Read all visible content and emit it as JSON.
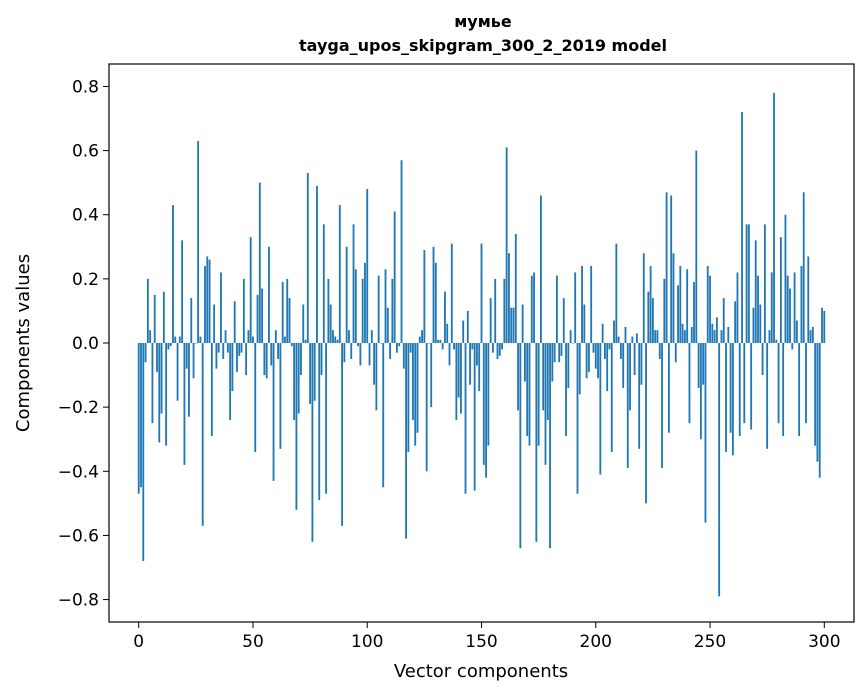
{
  "chart_data": {
    "type": "bar",
    "title_line1": "мумье",
    "title_line2": "tayga_upos_skipgram_300_2_2019 model",
    "xlabel": "Vector components",
    "ylabel": "Components values",
    "xlim": [
      -13,
      313
    ],
    "ylim": [
      -0.87,
      0.87
    ],
    "xticks": [
      0,
      50,
      100,
      150,
      200,
      250,
      300
    ],
    "yticks": [
      -0.8,
      -0.6,
      -0.4,
      -0.2,
      0.0,
      0.2,
      0.4,
      0.6,
      0.8
    ],
    "ytick_labels": [
      "−0.8",
      "−0.6",
      "−0.4",
      "−0.2",
      "0.0",
      "0.2",
      "0.4",
      "0.6",
      "0.8"
    ],
    "bar_color": "#1f77b4",
    "values": [
      -0.47,
      -0.45,
      -0.68,
      -0.06,
      0.2,
      0.04,
      -0.25,
      0.15,
      -0.09,
      -0.31,
      -0.22,
      0.16,
      -0.32,
      -0.02,
      -0.01,
      0.43,
      0.02,
      -0.18,
      0.02,
      0.32,
      -0.38,
      -0.08,
      -0.23,
      0.14,
      -0.11,
      0.0,
      0.63,
      0.02,
      -0.57,
      0.24,
      0.27,
      0.26,
      -0.29,
      0.12,
      -0.08,
      -0.03,
      0.22,
      -0.05,
      0.04,
      -0.03,
      -0.24,
      -0.15,
      0.13,
      -0.09,
      -0.04,
      -0.03,
      0.2,
      -0.1,
      0.04,
      0.33,
      0.02,
      -0.34,
      0.15,
      0.5,
      0.17,
      -0.1,
      -0.11,
      0.3,
      -0.07,
      -0.43,
      0.04,
      -0.05,
      -0.33,
      0.19,
      0.02,
      0.2,
      0.14,
      -0.01,
      -0.24,
      -0.52,
      -0.22,
      -0.1,
      0.12,
      0.01,
      0.53,
      -0.19,
      -0.62,
      -0.18,
      0.49,
      -0.49,
      -0.1,
      0.37,
      -0.47,
      0.2,
      0.12,
      0.04,
      0.02,
      0.01,
      0.43,
      -0.57,
      -0.06,
      0.3,
      0.04,
      -0.05,
      0.37,
      0.23,
      -0.01,
      -0.07,
      0.2,
      0.25,
      0.48,
      -0.07,
      0.04,
      -0.13,
      -0.21,
      0.21,
      0.0,
      -0.45,
      0.23,
      0.11,
      -0.05,
      0.2,
      0.41,
      -0.03,
      -0.01,
      0.57,
      -0.08,
      -0.61,
      -0.34,
      -0.03,
      -0.24,
      -0.32,
      -0.28,
      0.02,
      0.04,
      0.29,
      -0.4,
      0.0,
      -0.2,
      0.3,
      0.25,
      0.01,
      0.01,
      -0.02,
      0.16,
      0.06,
      -0.07,
      0.31,
      -0.02,
      -0.24,
      -0.17,
      -0.22,
      0.07,
      -0.47,
      0.1,
      -0.13,
      -0.02,
      -0.46,
      -0.07,
      -0.15,
      0.31,
      -0.38,
      -0.42,
      -0.32,
      0.14,
      -0.03,
      0.2,
      -0.05,
      -0.04,
      -0.02,
      0.2,
      0.61,
      0.28,
      0.11,
      0.11,
      0.34,
      -0.21,
      -0.64,
      0.12,
      -0.12,
      -0.29,
      -0.32,
      0.21,
      0.22,
      -0.62,
      -0.32,
      0.46,
      -0.21,
      -0.38,
      -0.24,
      -0.64,
      -0.12,
      -0.06,
      0.21,
      -0.06,
      -0.04,
      0.14,
      -0.29,
      -0.14,
      0.04,
      0.0,
      0.22,
      -0.47,
      -0.16,
      0.24,
      0.12,
      -0.11,
      -0.09,
      0.24,
      -0.03,
      -0.08,
      -0.11,
      -0.41,
      0.06,
      -0.05,
      -0.15,
      -0.02,
      -0.34,
      0.07,
      0.31,
      0.02,
      -0.05,
      -0.14,
      0.05,
      -0.39,
      -0.21,
      0.02,
      -0.1,
      0.03,
      -0.33,
      -0.13,
      0.28,
      -0.5,
      0.16,
      0.24,
      0.14,
      0.04,
      0.04,
      -0.05,
      -0.39,
      0.2,
      0.47,
      -0.28,
      0.46,
      0.28,
      -0.06,
      0.18,
      0.24,
      0.06,
      0.04,
      0.23,
      -0.25,
      0.05,
      0.19,
      0.6,
      -0.14,
      -0.3,
      -0.13,
      -0.56,
      0.24,
      0.21,
      0.06,
      0.04,
      0.08,
      -0.79,
      0.04,
      0.14,
      -0.34,
      0.05,
      -0.28,
      -0.35,
      0.13,
      0.22,
      -0.29,
      0.72,
      -0.25,
      0.37,
      0.37,
      -0.27,
      0.11,
      0.32,
      0.21,
      0.12,
      -0.1,
      0.37,
      -0.33,
      0.04,
      0.22,
      0.78,
      0.01,
      -0.25,
      0.33,
      -0.29,
      0.4,
      0.21,
      0.17,
      -0.02,
      0.22,
      0.07,
      -0.29,
      0.24,
      0.47,
      -0.25,
      0.27,
      0.04,
      0.05,
      -0.32,
      -0.37,
      -0.42,
      0.11,
      0.1
    ]
  }
}
